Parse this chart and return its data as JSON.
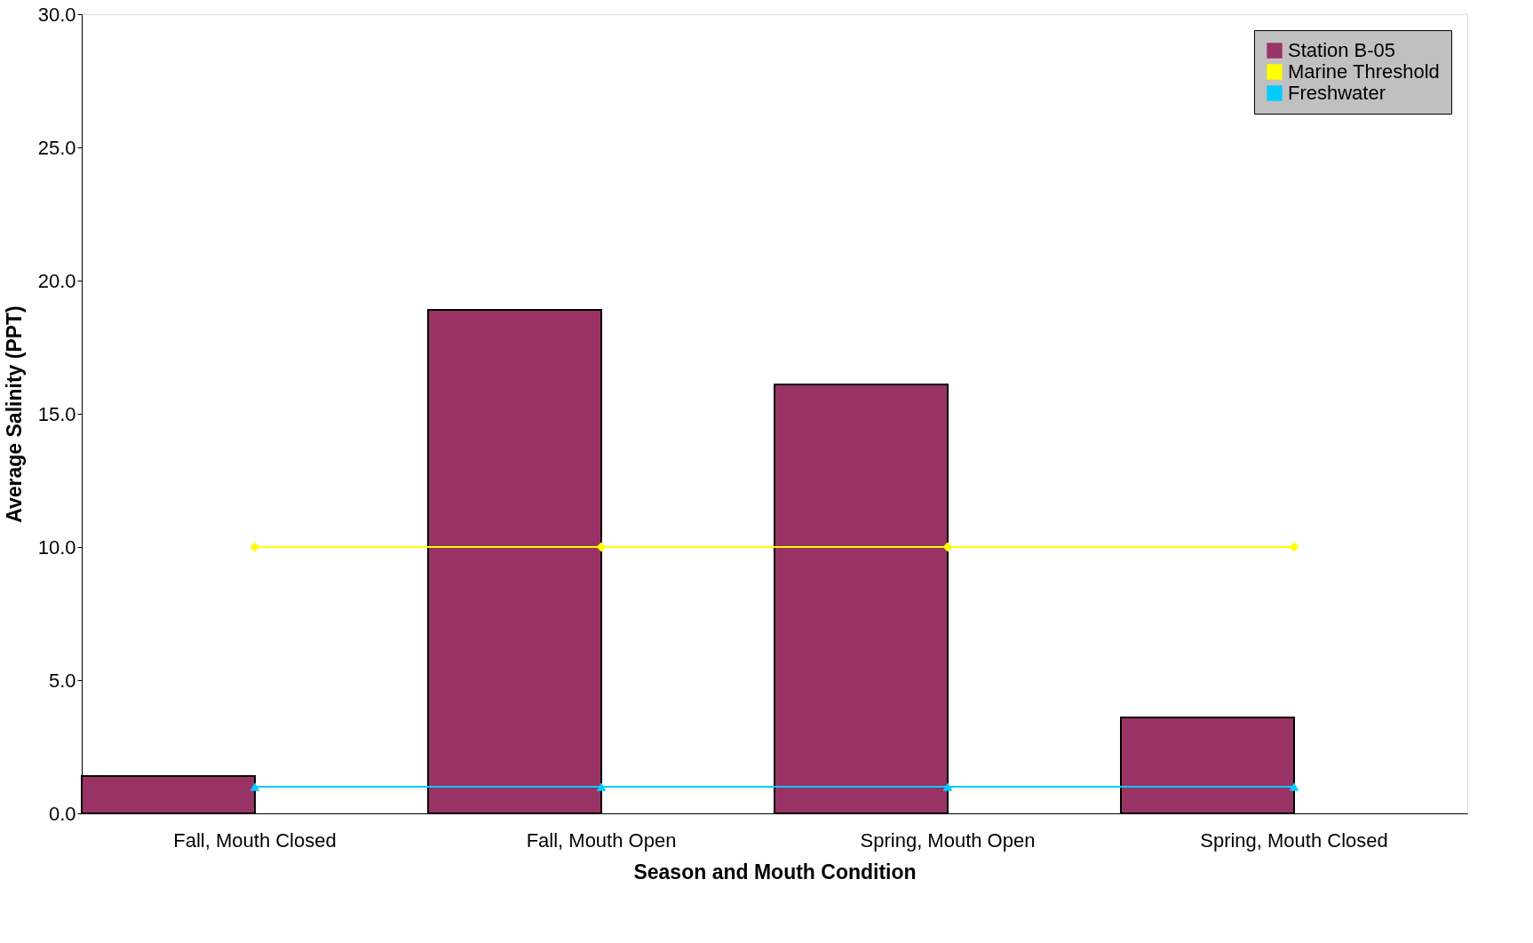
{
  "chart_data": {
    "type": "bar",
    "xlabel": "Season and Mouth Condition",
    "ylabel": "Average Salinity (PPT)",
    "categories": [
      "Fall, Mouth Closed",
      "Fall, Mouth Open",
      "Spring, Mouth Open",
      "Spring, Mouth Closed"
    ],
    "series": [
      {
        "name": "Station B-05",
        "color": "#993366",
        "values": [
          1.4,
          18.9,
          16.1,
          3.6
        ]
      },
      {
        "name": "Marine Threshold",
        "type": "line",
        "color": "#ffff00",
        "marker": "diamond",
        "values": [
          10,
          10,
          10,
          10
        ]
      },
      {
        "name": "Freshwater",
        "type": "line",
        "color": "#00ccff",
        "marker": "triangle",
        "values": [
          1,
          1,
          1,
          1
        ]
      }
    ],
    "ylim": [
      0,
      30
    ],
    "yticks": [
      {
        "value": 0,
        "label": "0.0"
      },
      {
        "value": 5,
        "label": "5.0"
      },
      {
        "value": 10,
        "label": "10.0"
      },
      {
        "value": 15,
        "label": "15.0"
      },
      {
        "value": 20,
        "label": "20.0"
      },
      {
        "value": 25,
        "label": "25.0"
      },
      {
        "value": 30,
        "label": "30.0"
      }
    ],
    "grid": false,
    "legend": "top right"
  }
}
